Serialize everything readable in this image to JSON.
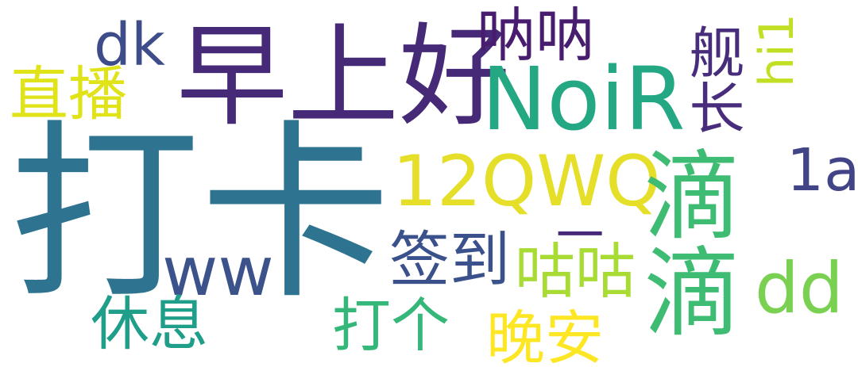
{
  "words": [
    {
      "id": "w1",
      "text": "打卡",
      "color": "#2e7490"
    },
    {
      "id": "w2",
      "text": "早上好",
      "color": "#462a78"
    },
    {
      "id": "w3",
      "text": "NoiR",
      "color": "#24a884"
    },
    {
      "id": "w4",
      "text": "12QWQ",
      "color": "#e6df2a"
    },
    {
      "id": "w5",
      "text": "滴滴",
      "color": "#3fbc73"
    },
    {
      "id": "w6",
      "text": "舰长",
      "color": "#472d7b"
    },
    {
      "id": "w7",
      "text": "hi1",
      "color": "#c2df23"
    },
    {
      "id": "w8",
      "text": "dk",
      "color": "#3e4c8a"
    },
    {
      "id": "w9",
      "text": "呐呐",
      "color": "#481c6e"
    },
    {
      "id": "w10",
      "text": "直播",
      "color": "#dfe318"
    },
    {
      "id": "w11",
      "text": "签到",
      "color": "#3b518b"
    },
    {
      "id": "w12",
      "text": "咕咕",
      "color": "#a8db34"
    },
    {
      "id": "w13",
      "text": "ww",
      "color": "#3b528b"
    },
    {
      "id": "w14",
      "text": "休息",
      "color": "#1f9e89"
    },
    {
      "id": "w15",
      "text": "打个",
      "color": "#35b779"
    },
    {
      "id": "w16",
      "text": "晚安",
      "color": "#fde725"
    },
    {
      "id": "w17",
      "text": "dd",
      "color": "#7ad151"
    },
    {
      "id": "w18",
      "text": "1a",
      "color": "#414487"
    },
    {
      "id": "w19",
      "text": "一",
      "color": "#482878"
    }
  ]
}
